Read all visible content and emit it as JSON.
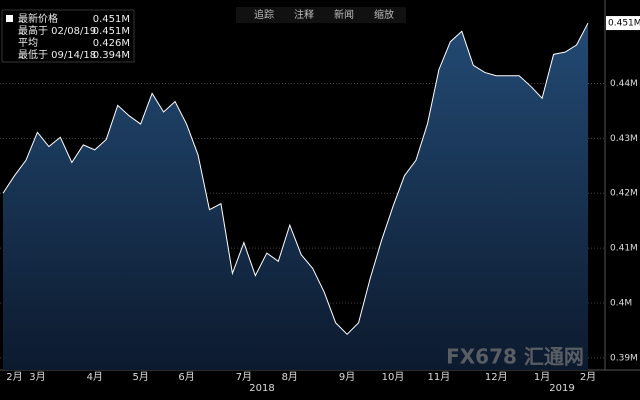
{
  "toolbar": [
    "追踪",
    "注释",
    "新闻",
    "缩放"
  ],
  "chart_data": {
    "type": "area",
    "categories": [
      null,
      "2月",
      null,
      "3月",
      null,
      null,
      null,
      null,
      "4月",
      null,
      null,
      null,
      "5月",
      null,
      null,
      null,
      "6月",
      null,
      null,
      null,
      null,
      "7月",
      null,
      null,
      null,
      "8月",
      null,
      null,
      null,
      null,
      "9月",
      null,
      null,
      null,
      "10月",
      null,
      null,
      null,
      "11月",
      null,
      null,
      null,
      null,
      "12月",
      null,
      null,
      null,
      "1月",
      null,
      null,
      null,
      "2月"
    ],
    "values": [
      0.42,
      0.4232,
      0.426,
      0.4311,
      0.4285,
      0.4302,
      0.4256,
      0.4288,
      0.4279,
      0.4298,
      0.436,
      0.4341,
      0.4326,
      0.4382,
      0.4348,
      0.4367,
      0.4326,
      0.427,
      0.417,
      0.4181,
      0.4054,
      0.411,
      0.405,
      0.4091,
      0.4076,
      0.4142,
      0.4088,
      0.4063,
      0.402,
      0.3964,
      0.3943,
      0.3964,
      0.4044,
      0.4114,
      0.4176,
      0.4232,
      0.426,
      0.4326,
      0.4425,
      0.4476,
      0.4495,
      0.4433,
      0.442,
      0.4414,
      0.4414,
      0.4414,
      0.4395,
      0.4373,
      0.4453,
      0.4457,
      0.447,
      0.451
    ],
    "last_label": "0.451M",
    "year_labels": [
      "2018",
      "2019"
    ],
    "ylim": [
      0.3878,
      0.4552
    ],
    "yticks": [
      {
        "value": 0.39,
        "label": "0.39M"
      },
      {
        "value": 0.4,
        "label": "0.4M"
      },
      {
        "value": 0.41,
        "label": "0.41M"
      },
      {
        "value": 0.42,
        "label": "0.42M"
      },
      {
        "value": 0.43,
        "label": "0.43M"
      },
      {
        "value": 0.44,
        "label": "0.44M"
      }
    ],
    "grid": true,
    "line_color": "#ffffff",
    "fill_color": "#1d3a5e",
    "legend": [
      {
        "label": "最新价格",
        "value": "0.451M"
      },
      {
        "label": "最高于 02/08/19",
        "value": "0.451M"
      },
      {
        "label": "平均",
        "value": "0.426M"
      },
      {
        "label": "最低于 09/14/18",
        "value": "0.394M"
      }
    ],
    "watermark": "FX678 汇通网"
  }
}
